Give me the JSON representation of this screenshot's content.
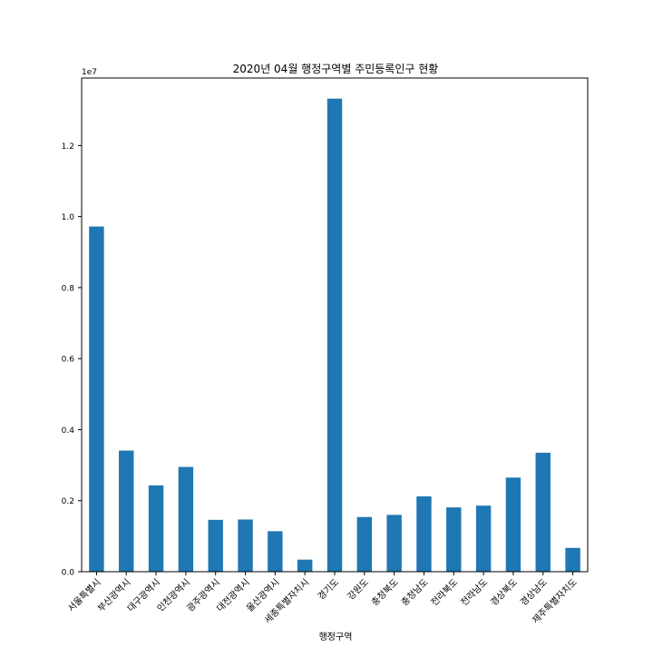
{
  "chart_data": {
    "type": "bar",
    "title": "2020년 04월 행정구역별 주민등록인구 현황",
    "xlabel": "행정구역",
    "ylabel": "",
    "offset_label": "1e7",
    "ylim": [
      0,
      1.39
    ],
    "yticks": [
      0.0,
      0.2,
      0.4,
      0.6,
      0.8,
      1.0,
      1.2
    ],
    "ytick_labels": [
      "0.0",
      "0.2",
      "0.4",
      "0.6",
      "0.8",
      "1.0",
      "1.2"
    ],
    "grid": false,
    "legend": "none",
    "color": "#1f77b4",
    "categories": [
      "서울특별시",
      "부산광역시",
      "대구광역시",
      "인천광역시",
      "광주광역시",
      "대전광역시",
      "울산광역시",
      "세종특별자치시",
      "경기도",
      "강원도",
      "충청북도",
      "충청남도",
      "전라북도",
      "전라남도",
      "경상북도",
      "경상남도",
      "제주특별자치도"
    ],
    "values": [
      0.972,
      0.341,
      0.243,
      0.295,
      0.146,
      0.147,
      0.114,
      0.034,
      1.332,
      0.154,
      0.16,
      0.212,
      0.181,
      0.186,
      0.265,
      0.335,
      0.067
    ]
  }
}
